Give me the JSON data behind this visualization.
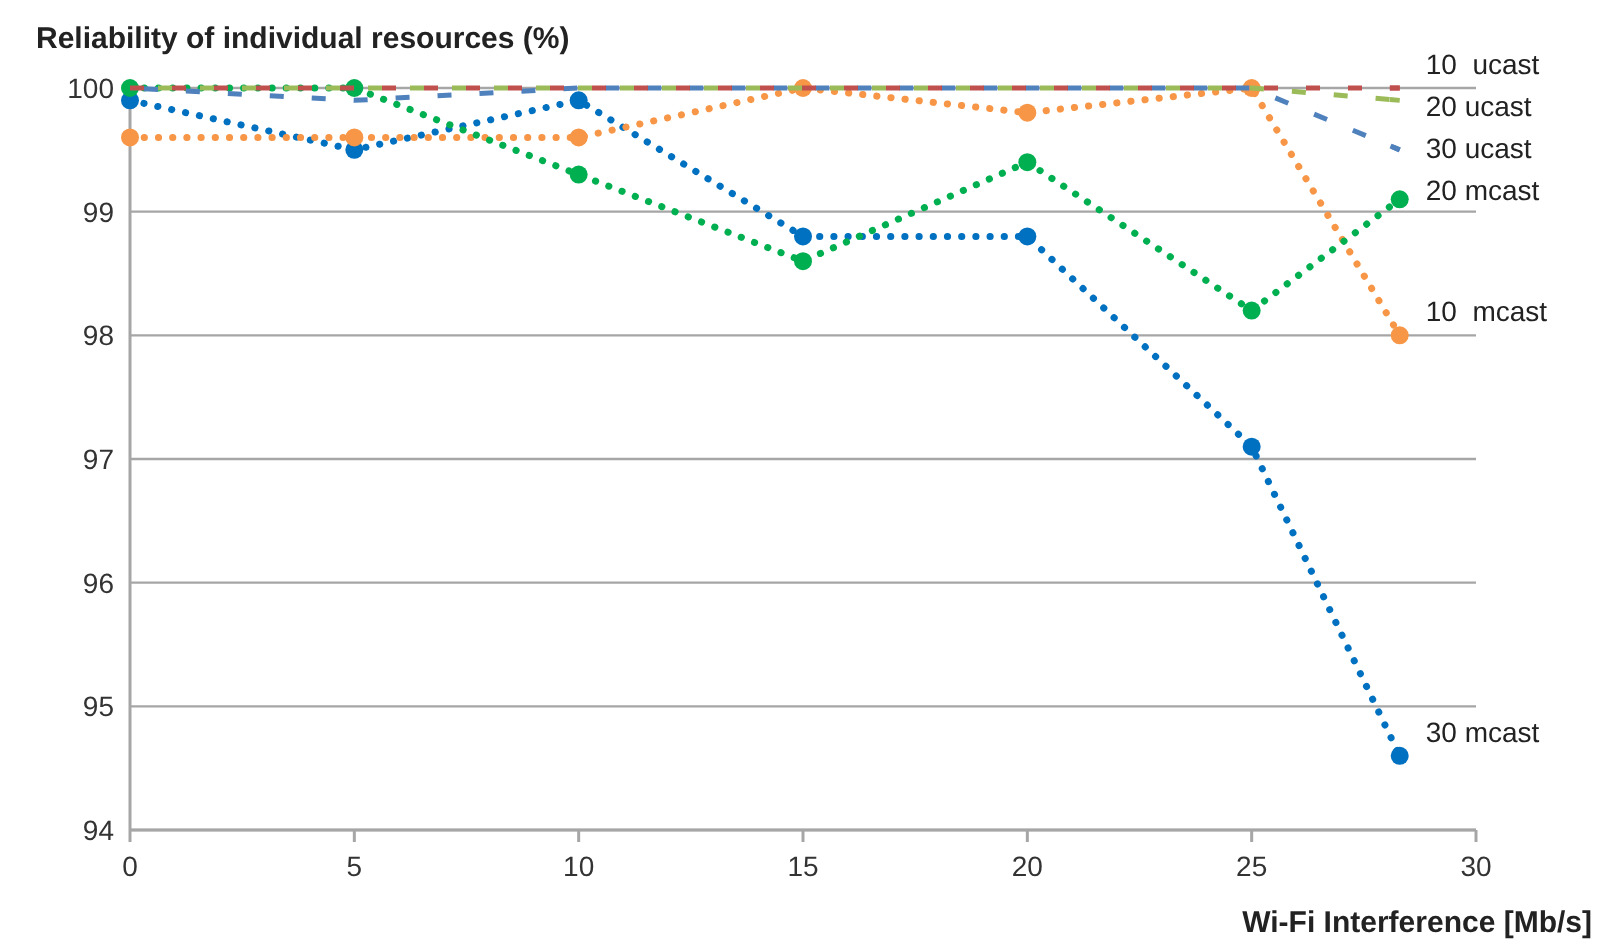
{
  "chart_data": {
    "type": "line",
    "title": "Reliability of individual resources (%)",
    "xlabel": "Wi-Fi Interference [Mb/s]",
    "x": [
      0,
      5,
      10,
      15,
      20,
      25,
      28.3
    ],
    "xlim": [
      0,
      30
    ],
    "xticks": [
      0,
      5,
      10,
      15,
      20,
      25,
      30
    ],
    "ylim": [
      94,
      100
    ],
    "yticks": [
      94,
      95,
      96,
      97,
      98,
      99,
      100
    ],
    "grid": "y",
    "series": [
      {
        "name": "10  ucast",
        "color": "#c0504d",
        "line_style": "dashed",
        "marker": "none",
        "values": [
          100,
          100,
          100,
          100,
          100,
          100,
          100
        ]
      },
      {
        "name": "20 ucast",
        "color": "#9bbb59",
        "line_style": "dashed",
        "marker": "none",
        "values": [
          100,
          100,
          100,
          100,
          100,
          100,
          99.9
        ]
      },
      {
        "name": "30 ucast",
        "color": "#4f81bd",
        "line_style": "dashed",
        "marker": "none",
        "values": [
          100,
          99.9,
          100,
          100,
          100,
          100,
          99.5
        ]
      },
      {
        "name": "20 mcast",
        "color": "#00b050",
        "line_style": "dotted",
        "marker": "circle",
        "values": [
          100,
          100,
          99.3,
          98.6,
          99.4,
          98.2,
          99.1
        ]
      },
      {
        "name": "10  mcast",
        "color": "#f79646",
        "line_style": "dotted",
        "marker": "circle",
        "values": [
          99.6,
          99.6,
          99.6,
          100,
          99.8,
          100,
          98.0
        ]
      },
      {
        "name": "30 mcast",
        "color": "#0070c0",
        "line_style": "dotted",
        "marker": "circle",
        "values": [
          99.9,
          99.5,
          99.9,
          98.8,
          98.8,
          97.1,
          94.6
        ]
      }
    ]
  }
}
